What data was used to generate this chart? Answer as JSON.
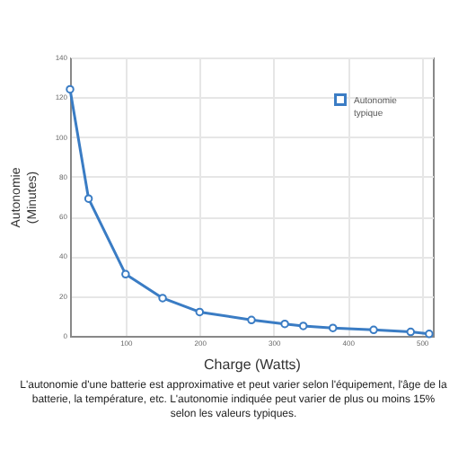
{
  "chart_data": {
    "type": "line",
    "xlabel": "Charge (Watts)",
    "ylabel": "Autonomie (Minutes)",
    "x": [
      25,
      50,
      100,
      150,
      200,
      270,
      315,
      340,
      380,
      435,
      485,
      510
    ],
    "series": [
      {
        "name": "Autonomie typique",
        "color": "#3a7cc4",
        "values": [
          124,
          69,
          31,
          19,
          12,
          8,
          6,
          5,
          4,
          3,
          2,
          1
        ]
      }
    ],
    "xlim": [
      25,
      515
    ],
    "xticks": [
      100,
      200,
      300,
      400,
      500
    ],
    "ylim": [
      0,
      140
    ],
    "yticks": [
      0,
      20,
      40,
      60,
      80,
      100,
      120,
      140
    ],
    "grid": true,
    "legend": "top right",
    "marker": "circle",
    "line_style": "solid",
    "annotations": [
      "L'autonomie d'une batterie est approximative et peut varier selon l'équipement, l'âge de la batterie, la température, etc. L'autonomie indiquée peut varier de plus ou moins 15% selon les valeurs typiques."
    ]
  }
}
